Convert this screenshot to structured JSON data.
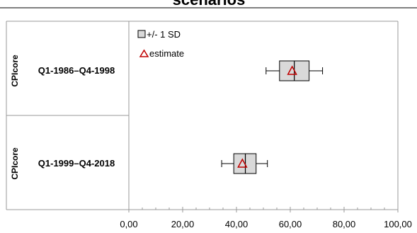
{
  "chart_data": {
    "type": "boxplot",
    "title": "scenarios",
    "xlabel": "",
    "ylabel": "",
    "xlim": [
      0,
      100
    ],
    "x_ticks": [
      "0,00",
      "20,00",
      "40,00",
      "60,00",
      "80,00",
      "100,00"
    ],
    "x_tick_values": [
      0,
      20,
      40,
      60,
      80,
      100
    ],
    "minor_tick_step": 5,
    "legend": {
      "placement": "top-left",
      "items": [
        {
          "label": "+/- 1 SD",
          "symbol": "box"
        },
        {
          "label": "estimate",
          "symbol": "triangle"
        }
      ]
    },
    "rows": [
      {
        "group": "CPIcore",
        "period": "Q1-1986–Q4-1998",
        "whisker_low": 51.0,
        "box_low": 56.0,
        "median": 61.5,
        "box_high": 67.0,
        "whisker_high": 72.0,
        "estimate": 60.7
      },
      {
        "group": "CPIcore",
        "period": "Q1-1999–Q4-2018",
        "whisker_low": 34.5,
        "box_low": 39.0,
        "median": 43.3,
        "box_high": 47.3,
        "whisker_high": 51.5,
        "estimate": 42.2
      }
    ],
    "colors": {
      "box_fill": "#d9d9d9",
      "box_stroke": "#000000",
      "estimate": "#c00000",
      "frame": "#999999",
      "grid": "#e6e6e6"
    }
  }
}
